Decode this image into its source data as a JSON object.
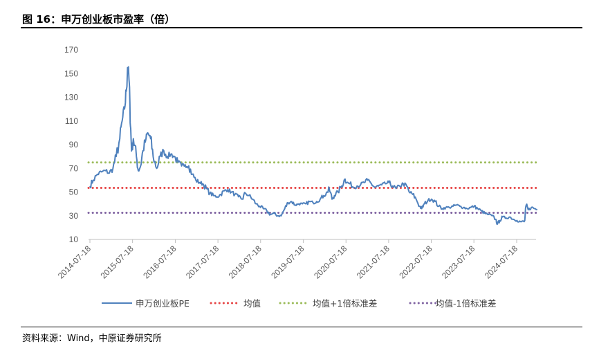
{
  "figure": {
    "title": "图 16：申万创业板市盈率（倍）",
    "source": "资料来源：Wind，中原证券研究所"
  },
  "colors": {
    "pe_line": "#4F81BD",
    "mean_line": "#E64545",
    "plus1_line": "#9BBB59",
    "minus1_line": "#8064A2",
    "axis": "#BFBFBF",
    "tick_text": "#595959"
  },
  "chart_data": {
    "type": "line",
    "title": "",
    "xlabel": "",
    "ylabel": "",
    "ylim": [
      10,
      170
    ],
    "yticks": [
      10,
      30,
      50,
      70,
      90,
      110,
      130,
      150,
      170
    ],
    "xticks": [
      "2014-07-18",
      "2015-07-18",
      "2016-07-18",
      "2017-07-18",
      "2018-07-18",
      "2019-07-18",
      "2020-07-18",
      "2021-07-18",
      "2022-07-18",
      "2023-07-18",
      "2024-07-18"
    ],
    "x_range": [
      "2014-07-18",
      "2025-01-10"
    ],
    "grid": false,
    "legend_position": "bottom",
    "series": [
      {
        "name": "申万创业板PE",
        "style": "solid",
        "points": [
          [
            "2014-07-18",
            55
          ],
          [
            "2014-08-15",
            60
          ],
          [
            "2014-09-20",
            65
          ],
          [
            "2014-10-25",
            67
          ],
          [
            "2014-11-30",
            68
          ],
          [
            "2014-12-31",
            66
          ],
          [
            "2015-01-31",
            70
          ],
          [
            "2015-02-28",
            80
          ],
          [
            "2015-03-31",
            95
          ],
          [
            "2015-04-20",
            110
          ],
          [
            "2015-05-10",
            120
          ],
          [
            "2015-05-25",
            135
          ],
          [
            "2015-06-05",
            155
          ],
          [
            "2015-06-15",
            150
          ],
          [
            "2015-06-25",
            125
          ],
          [
            "2015-07-05",
            95
          ],
          [
            "2015-07-10",
            85
          ],
          [
            "2015-07-25",
            95
          ],
          [
            "2015-08-20",
            80
          ],
          [
            "2015-09-05",
            68
          ],
          [
            "2015-09-25",
            72
          ],
          [
            "2015-10-15",
            85
          ],
          [
            "2015-11-10",
            95
          ],
          [
            "2015-11-25",
            100
          ],
          [
            "2015-12-20",
            95
          ],
          [
            "2016-01-10",
            80
          ],
          [
            "2016-02-10",
            70
          ],
          [
            "2016-03-10",
            80
          ],
          [
            "2016-04-10",
            85
          ],
          [
            "2016-05-10",
            80
          ],
          [
            "2016-06-10",
            82
          ],
          [
            "2016-07-10",
            80
          ],
          [
            "2016-08-10",
            75
          ],
          [
            "2016-09-10",
            72
          ],
          [
            "2016-10-10",
            73
          ],
          [
            "2016-11-10",
            72
          ],
          [
            "2016-12-10",
            65
          ],
          [
            "2017-01-10",
            60
          ],
          [
            "2017-02-10",
            58
          ],
          [
            "2017-03-10",
            57
          ],
          [
            "2017-04-10",
            53
          ],
          [
            "2017-05-10",
            49
          ],
          [
            "2017-06-10",
            47
          ],
          [
            "2017-07-10",
            46
          ],
          [
            "2017-08-10",
            48
          ],
          [
            "2017-09-10",
            51
          ],
          [
            "2017-10-10",
            52
          ],
          [
            "2017-11-10",
            50
          ],
          [
            "2017-12-10",
            48
          ],
          [
            "2018-01-10",
            46
          ],
          [
            "2018-02-10",
            44
          ],
          [
            "2018-03-10",
            49
          ],
          [
            "2018-04-10",
            47
          ],
          [
            "2018-05-10",
            44
          ],
          [
            "2018-06-10",
            40
          ],
          [
            "2018-07-10",
            38
          ],
          [
            "2018-08-10",
            36
          ],
          [
            "2018-09-10",
            34
          ],
          [
            "2018-10-10",
            31
          ],
          [
            "2018-11-10",
            32
          ],
          [
            "2018-12-10",
            30
          ],
          [
            "2019-01-10",
            30
          ],
          [
            "2019-02-10",
            36
          ],
          [
            "2019-03-10",
            41
          ],
          [
            "2019-04-10",
            42
          ],
          [
            "2019-05-10",
            39
          ],
          [
            "2019-06-10",
            40
          ],
          [
            "2019-07-10",
            40
          ],
          [
            "2019-08-10",
            40
          ],
          [
            "2019-09-10",
            42
          ],
          [
            "2019-10-10",
            41
          ],
          [
            "2019-11-10",
            42
          ],
          [
            "2019-12-10",
            44
          ],
          [
            "2020-01-10",
            47
          ],
          [
            "2020-02-10",
            50
          ],
          [
            "2020-02-25",
            53
          ],
          [
            "2020-03-20",
            44
          ],
          [
            "2020-04-10",
            47
          ],
          [
            "2020-05-10",
            50
          ],
          [
            "2020-06-10",
            55
          ],
          [
            "2020-07-10",
            61
          ],
          [
            "2020-07-25",
            58
          ],
          [
            "2020-08-20",
            57
          ],
          [
            "2020-09-20",
            54
          ],
          [
            "2020-10-20",
            55
          ],
          [
            "2020-11-20",
            56
          ],
          [
            "2020-12-20",
            58
          ],
          [
            "2021-01-20",
            60
          ],
          [
            "2021-02-20",
            57
          ],
          [
            "2021-03-20",
            54
          ],
          [
            "2021-04-20",
            55
          ],
          [
            "2021-05-20",
            56
          ],
          [
            "2021-06-20",
            57
          ],
          [
            "2021-07-20",
            58
          ],
          [
            "2021-08-20",
            55
          ],
          [
            "2021-09-20",
            53
          ],
          [
            "2021-10-20",
            55
          ],
          [
            "2021-11-20",
            57
          ],
          [
            "2021-12-20",
            55
          ],
          [
            "2022-01-10",
            50
          ],
          [
            "2022-02-10",
            48
          ],
          [
            "2022-03-10",
            44
          ],
          [
            "2022-04-10",
            38
          ],
          [
            "2022-04-27",
            36
          ],
          [
            "2022-05-20",
            40
          ],
          [
            "2022-06-20",
            43
          ],
          [
            "2022-07-20",
            44
          ],
          [
            "2022-08-20",
            42
          ],
          [
            "2022-09-20",
            38
          ],
          [
            "2022-10-20",
            36
          ],
          [
            "2022-11-20",
            37
          ],
          [
            "2022-12-20",
            37
          ],
          [
            "2023-01-20",
            38
          ],
          [
            "2023-02-20",
            39
          ],
          [
            "2023-03-20",
            38
          ],
          [
            "2023-04-20",
            37
          ],
          [
            "2023-05-20",
            36
          ],
          [
            "2023-06-20",
            37
          ],
          [
            "2023-07-20",
            38
          ],
          [
            "2023-08-20",
            36
          ],
          [
            "2023-09-20",
            34
          ],
          [
            "2023-10-20",
            32
          ],
          [
            "2023-11-20",
            31
          ],
          [
            "2023-12-20",
            30
          ],
          [
            "2024-01-20",
            27
          ],
          [
            "2024-02-05",
            23
          ],
          [
            "2024-02-25",
            26
          ],
          [
            "2024-03-20",
            29
          ],
          [
            "2024-04-20",
            28
          ],
          [
            "2024-05-20",
            29
          ],
          [
            "2024-06-20",
            27
          ],
          [
            "2024-07-20",
            26
          ],
          [
            "2024-08-20",
            25
          ],
          [
            "2024-09-20",
            25
          ],
          [
            "2024-09-25",
            26
          ],
          [
            "2024-10-08",
            39
          ],
          [
            "2024-10-25",
            35
          ],
          [
            "2024-11-20",
            37
          ],
          [
            "2024-12-20",
            36
          ],
          [
            "2025-01-10",
            35
          ]
        ]
      },
      {
        "name": "均值",
        "style": "dotted",
        "constant": 53.5
      },
      {
        "name": "均值+1倍标准差",
        "style": "dotted",
        "constant": 75
      },
      {
        "name": "均值-1倍标准差",
        "style": "dotted",
        "constant": 32.5
      }
    ]
  }
}
